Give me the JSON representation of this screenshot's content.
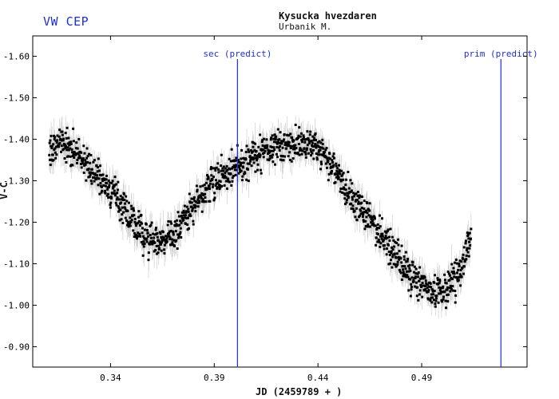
{
  "header": {
    "star_name": "VW CEP",
    "observatory": "Kysucka hvezdaren",
    "observer": "Urbanik M."
  },
  "chart_data": {
    "type": "scatter",
    "xlabel": "JD (2459789 + )",
    "ylabel": "V-C",
    "xlim": [
      0.3025,
      0.5408
    ],
    "ylim": [
      -1.649,
      -0.851
    ],
    "y_reversed": true,
    "x_ticks": [
      0.34,
      0.39,
      0.44,
      0.49
    ],
    "x_tick_labels": [
      "0.34",
      "0.39",
      "0.44",
      "0.49"
    ],
    "y_ticks": [
      -1.6,
      -1.5,
      -1.4,
      -1.3,
      -1.2,
      -1.1,
      -1.0,
      -0.9
    ],
    "y_tick_labels": [
      "-1.60",
      "-1.50",
      "-1.40",
      "-1.30",
      "-1.20",
      "-1.10",
      "-1.00",
      "-0.90"
    ],
    "grid": false,
    "marker_color": "#000000",
    "errorbar_color": "#c8c8c8",
    "annotation_color": "#1f2fd6",
    "predictions": [
      {
        "label": "sec (predict)",
        "x": 0.4012
      },
      {
        "label": "prim (predict)",
        "x": 0.5282
      }
    ],
    "series": [
      {
        "x_start": 0.3105,
        "x_end": 0.5138,
        "trend_x": [
          0.3105,
          0.315,
          0.32,
          0.33,
          0.34,
          0.35,
          0.356,
          0.362,
          0.37,
          0.38,
          0.39,
          0.4,
          0.41,
          0.42,
          0.43,
          0.435,
          0.44,
          0.445,
          0.45,
          0.46,
          0.47,
          0.48,
          0.49,
          0.496,
          0.5,
          0.506,
          0.51,
          0.5138
        ],
        "trend_y": [
          -1.36,
          -1.4,
          -1.38,
          -1.33,
          -1.28,
          -1.21,
          -1.17,
          -1.15,
          -1.17,
          -1.24,
          -1.3,
          -1.33,
          -1.36,
          -1.38,
          -1.39,
          -1.39,
          -1.38,
          -1.35,
          -1.31,
          -1.24,
          -1.17,
          -1.1,
          -1.05,
          -1.03,
          -1.04,
          -1.06,
          -1.1,
          -1.16
        ],
        "scatter_sd": 0.04,
        "errorbar_sd": 0.03
      }
    ]
  }
}
